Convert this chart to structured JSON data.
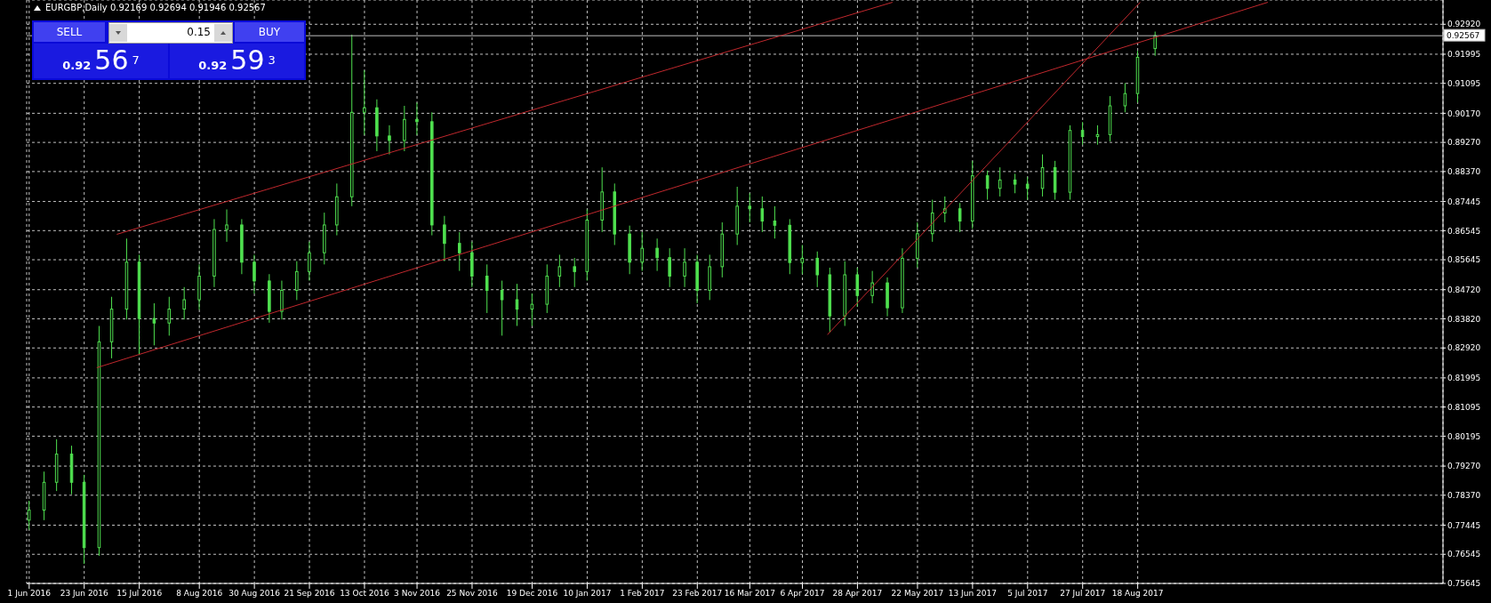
{
  "chart_data": {
    "type": "candlestick",
    "title": "EURGBP,Daily 0.92169 0.92694 0.91946 0.92567",
    "color": "#4fe04f",
    "x": [
      "2016-06-01",
      "2016-06-07",
      "2016-06-12",
      "2016-06-18",
      "2016-06-23",
      "2016-06-29",
      "2016-07-04",
      "2016-07-10",
      "2016-07-15",
      "2016-07-21",
      "2016-07-27",
      "2016-08-02",
      "2016-08-08",
      "2016-08-14",
      "2016-08-19",
      "2016-08-25",
      "2016-08-30",
      "2016-09-05",
      "2016-09-10",
      "2016-09-16",
      "2016-09-21",
      "2016-09-27",
      "2016-10-02",
      "2016-10-08",
      "2016-10-13",
      "2016-10-18",
      "2016-10-23",
      "2016-10-29",
      "2016-11-03",
      "2016-11-09",
      "2016-11-14",
      "2016-11-20",
      "2016-11-25",
      "2016-12-01",
      "2016-12-07",
      "2016-12-13",
      "2016-12-19",
      "2016-12-25",
      "2016-12-30",
      "2017-01-05",
      "2017-01-10",
      "2017-01-16",
      "2017-01-21",
      "2017-01-27",
      "2017-02-01",
      "2017-02-07",
      "2017-02-12",
      "2017-02-18",
      "2017-02-23",
      "2017-02-28",
      "2017-03-05",
      "2017-03-11",
      "2017-03-16",
      "2017-03-21",
      "2017-03-26",
      "2017-04-01",
      "2017-04-06",
      "2017-04-12",
      "2017-04-17",
      "2017-04-23",
      "2017-04-28",
      "2017-05-04",
      "2017-05-10",
      "2017-05-16",
      "2017-05-22",
      "2017-05-28",
      "2017-06-02",
      "2017-06-08",
      "2017-06-13",
      "2017-06-19",
      "2017-06-24",
      "2017-06-30",
      "2017-07-05",
      "2017-07-11",
      "2017-07-16",
      "2017-07-22",
      "2017-07-27",
      "2017-08-02",
      "2017-08-07",
      "2017-08-13",
      "2017-08-18",
      "2017-08-25"
    ],
    "ohlc": [
      [
        0.776,
        0.782,
        0.773,
        0.7791
      ],
      [
        0.7791,
        0.791,
        0.776,
        0.7877
      ],
      [
        0.7877,
        0.801,
        0.785,
        0.7964
      ],
      [
        0.7964,
        0.799,
        0.784,
        0.7877
      ],
      [
        0.7877,
        0.79,
        0.7625,
        0.7675
      ],
      [
        0.7675,
        0.836,
        0.765,
        0.8311
      ],
      [
        0.8311,
        0.845,
        0.826,
        0.8412
      ],
      [
        0.8412,
        0.863,
        0.838,
        0.8557
      ],
      [
        0.8557,
        0.858,
        0.827,
        0.8383
      ],
      [
        0.8383,
        0.843,
        0.83,
        0.8369
      ],
      [
        0.8369,
        0.845,
        0.833,
        0.8412
      ],
      [
        0.8412,
        0.848,
        0.838,
        0.8441
      ],
      [
        0.8441,
        0.855,
        0.841,
        0.8514
      ],
      [
        0.8514,
        0.869,
        0.848,
        0.8658
      ],
      [
        0.8658,
        0.872,
        0.862,
        0.8672
      ],
      [
        0.8672,
        0.869,
        0.852,
        0.8557
      ],
      [
        0.8557,
        0.858,
        0.846,
        0.8499
      ],
      [
        0.8499,
        0.852,
        0.837,
        0.8405
      ],
      [
        0.8405,
        0.85,
        0.838,
        0.847
      ],
      [
        0.847,
        0.856,
        0.844,
        0.8528
      ],
      [
        0.8528,
        0.862,
        0.85,
        0.8586
      ],
      [
        0.8586,
        0.871,
        0.855,
        0.8672
      ],
      [
        0.8672,
        0.88,
        0.864,
        0.8759
      ],
      [
        0.8759,
        0.926,
        0.873,
        0.902
      ],
      [
        0.902,
        0.915,
        0.895,
        0.9034
      ],
      [
        0.9034,
        0.906,
        0.89,
        0.8947
      ],
      [
        0.8947,
        0.898,
        0.889,
        0.8933
      ],
      [
        0.8933,
        0.904,
        0.89,
        0.8998
      ],
      [
        0.8998,
        0.905,
        0.895,
        0.8991
      ],
      [
        0.8991,
        0.902,
        0.864,
        0.8672
      ],
      [
        0.8672,
        0.87,
        0.856,
        0.8615
      ],
      [
        0.8615,
        0.865,
        0.853,
        0.8586
      ],
      [
        0.8586,
        0.862,
        0.848,
        0.8514
      ],
      [
        0.8514,
        0.855,
        0.84,
        0.847
      ],
      [
        0.847,
        0.85,
        0.833,
        0.8441
      ],
      [
        0.8441,
        0.849,
        0.836,
        0.8412
      ],
      [
        0.8412,
        0.846,
        0.836,
        0.8427
      ],
      [
        0.8427,
        0.855,
        0.84,
        0.8514
      ],
      [
        0.8514,
        0.858,
        0.848,
        0.8543
      ],
      [
        0.8543,
        0.857,
        0.848,
        0.8528
      ],
      [
        0.8528,
        0.872,
        0.85,
        0.8687
      ],
      [
        0.8687,
        0.885,
        0.865,
        0.8774
      ],
      [
        0.8774,
        0.88,
        0.861,
        0.8644
      ],
      [
        0.8644,
        0.867,
        0.852,
        0.8557
      ],
      [
        0.8557,
        0.865,
        0.853,
        0.86
      ],
      [
        0.86,
        0.863,
        0.853,
        0.8571
      ],
      [
        0.8571,
        0.86,
        0.848,
        0.8514
      ],
      [
        0.8514,
        0.86,
        0.848,
        0.8557
      ],
      [
        0.8557,
        0.858,
        0.843,
        0.847
      ],
      [
        0.847,
        0.858,
        0.844,
        0.8543
      ],
      [
        0.8543,
        0.868,
        0.851,
        0.8644
      ],
      [
        0.8644,
        0.879,
        0.861,
        0.873
      ],
      [
        0.873,
        0.877,
        0.868,
        0.8722
      ],
      [
        0.8722,
        0.876,
        0.865,
        0.8684
      ],
      [
        0.8684,
        0.873,
        0.863,
        0.8671
      ],
      [
        0.8671,
        0.869,
        0.852,
        0.8556
      ],
      [
        0.8556,
        0.861,
        0.852,
        0.8569
      ],
      [
        0.8569,
        0.859,
        0.848,
        0.8518
      ],
      [
        0.8518,
        0.854,
        0.834,
        0.8391
      ],
      [
        0.8391,
        0.856,
        0.836,
        0.8518
      ],
      [
        0.8518,
        0.854,
        0.842,
        0.8454
      ],
      [
        0.8454,
        0.853,
        0.843,
        0.8493
      ],
      [
        0.8493,
        0.851,
        0.839,
        0.8416
      ],
      [
        0.8416,
        0.86,
        0.84,
        0.8569
      ],
      [
        0.8569,
        0.868,
        0.854,
        0.8645
      ],
      [
        0.8645,
        0.875,
        0.862,
        0.8709
      ],
      [
        0.8709,
        0.876,
        0.868,
        0.8722
      ],
      [
        0.8722,
        0.874,
        0.865,
        0.8684
      ],
      [
        0.8684,
        0.887,
        0.866,
        0.8824
      ],
      [
        0.8824,
        0.884,
        0.875,
        0.8785
      ],
      [
        0.8785,
        0.885,
        0.876,
        0.8811
      ],
      [
        0.8811,
        0.883,
        0.877,
        0.8798
      ],
      [
        0.8798,
        0.882,
        0.875,
        0.8785
      ],
      [
        0.8785,
        0.889,
        0.876,
        0.8849
      ],
      [
        0.8849,
        0.887,
        0.875,
        0.8773
      ],
      [
        0.8773,
        0.898,
        0.875,
        0.8964
      ],
      [
        0.8964,
        0.899,
        0.892,
        0.8945
      ],
      [
        0.8945,
        0.898,
        0.892,
        0.8951
      ],
      [
        0.8951,
        0.907,
        0.893,
        0.904
      ],
      [
        0.904,
        0.911,
        0.902,
        0.9078
      ],
      [
        0.9078,
        0.921,
        0.905,
        0.919
      ],
      [
        0.92169,
        0.92694,
        0.91946,
        0.92567
      ]
    ],
    "series": [
      {
        "type": "line",
        "color": "#c0282d",
        "x": [
          "2016-07-06",
          "2017-05-12"
        ],
        "values": [
          0.8643,
          0.936
        ]
      },
      {
        "type": "line",
        "color": "#c0282d",
        "x": [
          "2016-06-28",
          "2017-10-09"
        ],
        "values": [
          0.8231,
          0.936
        ]
      },
      {
        "type": "line",
        "color": "#c0282d",
        "x": [
          "2017-04-16",
          "2017-08-19"
        ],
        "values": [
          0.8333,
          0.936
        ]
      }
    ],
    "xlim": [
      "2016-05-31",
      "2017-12-18"
    ],
    "xticks": [
      {
        "value": "2016-06-01",
        "label": "1 Jun 2016"
      },
      {
        "value": "2016-06-23",
        "label": "23 Jun 2016"
      },
      {
        "value": "2016-07-15",
        "label": "15 Jul 2016"
      },
      {
        "value": "2016-08-08",
        "label": "8 Aug 2016"
      },
      {
        "value": "2016-08-30",
        "label": "30 Aug 2016"
      },
      {
        "value": "2016-09-21",
        "label": "21 Sep 2016"
      },
      {
        "value": "2016-10-13",
        "label": "13 Oct 2016"
      },
      {
        "value": "2016-11-03",
        "label": "3 Nov 2016"
      },
      {
        "value": "2016-11-25",
        "label": "25 Nov 2016"
      },
      {
        "value": "2016-12-19",
        "label": "19 Dec 2016"
      },
      {
        "value": "2017-01-10",
        "label": "10 Jan 2017"
      },
      {
        "value": "2017-02-01",
        "label": "1 Feb 2017"
      },
      {
        "value": "2017-02-23",
        "label": "23 Feb 2017"
      },
      {
        "value": "2017-03-16",
        "label": "16 Mar 2017"
      },
      {
        "value": "2017-04-06",
        "label": "6 Apr 2017"
      },
      {
        "value": "2017-04-28",
        "label": "28 Apr 2017"
      },
      {
        "value": "2017-05-22",
        "label": "22 May 2017"
      },
      {
        "value": "2017-06-13",
        "label": "13 Jun 2017"
      },
      {
        "value": "2017-07-05",
        "label": "5 Jul 2017"
      },
      {
        "value": "2017-07-27",
        "label": "27 Jul 2017"
      },
      {
        "value": "2017-08-18",
        "label": "18 Aug 2017"
      }
    ],
    "ylim": [
      0.75645,
      0.9367
    ],
    "yticks": [
      0.75645,
      0.76545,
      0.77445,
      {
        "value": 0.7837,
        "label": "0.78370"
      },
      {
        "value": 0.7927,
        "label": "0.79270"
      },
      0.80195,
      0.81095,
      0.81995,
      {
        "value": 0.8292,
        "label": "0.82920"
      },
      {
        "value": 0.8382,
        "label": "0.83820"
      },
      {
        "value": 0.8472,
        "label": "0.84720"
      },
      0.85645,
      0.86545,
      0.87445,
      {
        "value": 0.8837,
        "label": "0.88370"
      },
      {
        "value": 0.8927,
        "label": "0.89270"
      },
      {
        "value": 0.9017,
        "label": "0.90170"
      },
      0.91095,
      0.91995,
      {
        "value": 0.9292,
        "label": "0.92920"
      }
    ],
    "ref_lines": [
      {
        "axis": "y",
        "value": 0.92567,
        "label": "0.92567",
        "color": "#c0c0c0"
      }
    ],
    "grid": true,
    "annotations": [
      "SELL",
      "0.15",
      "BUY",
      "0.92",
      "56",
      "7",
      "0.92",
      "59",
      "3"
    ]
  }
}
